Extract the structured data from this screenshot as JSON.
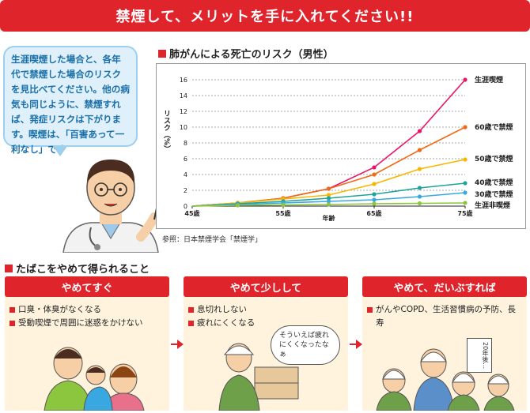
{
  "banner": {
    "title": "禁煙して、メリットを手に入れてください!!"
  },
  "bubble": {
    "text": "生涯喫煙した場合と、各年代で禁煙した場合のリスクを見比べてください。他の病気も同じように、禁煙すれば、発症リスクは下がります。喫煙は、「百害あって一利なし」です"
  },
  "section1": {
    "title": "肺がんによる死亡のリスク（男性）",
    "source": "参照：日本禁煙学会「禁煙学」"
  },
  "section2": {
    "title": "たばこをやめて得られること"
  },
  "cards": [
    {
      "title": "やめてすぐ",
      "items": [
        "口臭・体臭がなくなる",
        "受動喫煙で周囲に迷惑をかけない"
      ]
    },
    {
      "title": "やめて少しして",
      "items": [
        "息切れしない",
        "疲れにくくなる"
      ],
      "speech": "そういえば疲れにくくなったなぁ"
    },
    {
      "title": "やめて、だいぶすれば",
      "items": [
        "がんやCOPD、生活習慣病の予防、長寿"
      ],
      "sign": "20年後…"
    }
  ],
  "chart_data": {
    "type": "line",
    "title": "肺がんによる死亡のリスク（男性）",
    "xlabel": "年齢",
    "ylabel": "リスク（%）",
    "x": [
      45,
      50,
      55,
      60,
      65,
      70,
      75
    ],
    "x_tick_labels": [
      "45歳",
      "55歳",
      "65歳",
      "75歳"
    ],
    "x_ticks": [
      45,
      55,
      65,
      75
    ],
    "ylim": [
      0,
      16
    ],
    "y_ticks": [
      0,
      2,
      4,
      6,
      8,
      10,
      12,
      14,
      16
    ],
    "grid": true,
    "series": [
      {
        "name": "生涯喫煙",
        "color": "#e8166b",
        "values": [
          0,
          0.4,
          1.0,
          2.2,
          4.9,
          9.5,
          16.0
        ]
      },
      {
        "name": "60歳で禁煙",
        "color": "#f06a16",
        "values": [
          0,
          0.4,
          1.0,
          2.2,
          4.0,
          7.1,
          10.0
        ]
      },
      {
        "name": "50歳で禁煙",
        "color": "#f5b800",
        "values": [
          0,
          0.4,
          0.9,
          1.4,
          2.8,
          4.7,
          5.9
        ]
      },
      {
        "name": "40歳で禁煙",
        "color": "#1fa39a",
        "values": [
          0,
          0.3,
          0.6,
          1.0,
          1.5,
          2.3,
          2.9
        ]
      },
      {
        "name": "30歳で禁煙",
        "color": "#3aa8e0",
        "values": [
          0,
          0.2,
          0.4,
          0.6,
          0.8,
          1.2,
          1.7
        ]
      },
      {
        "name": "生涯非喫煙",
        "color": "#8cc63f",
        "values": [
          0,
          0.1,
          0.15,
          0.2,
          0.3,
          0.35,
          0.4
        ]
      }
    ]
  }
}
